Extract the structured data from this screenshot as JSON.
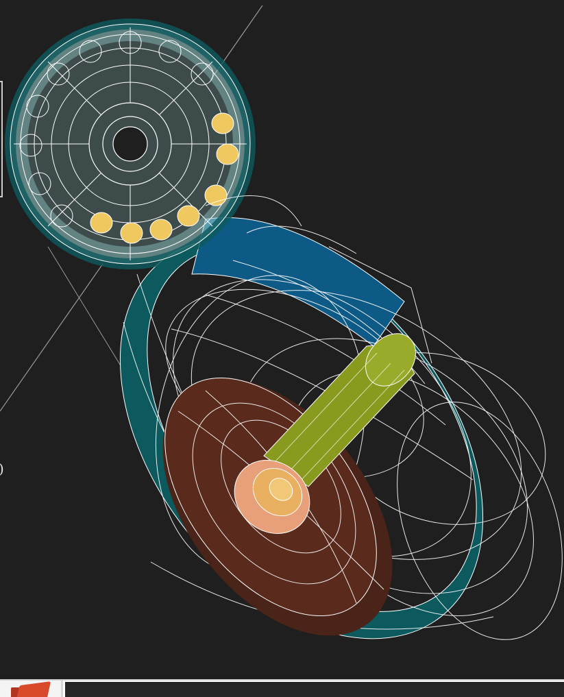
{
  "viewer": {
    "background_color": "#1f1f1f",
    "edge_glyph": ")",
    "wire_color": "#ffffff"
  },
  "model_parts": [
    {
      "name": "bearing-ring",
      "color": "#9ad4d4"
    },
    {
      "name": "bearing-balls",
      "color": "#f0c860"
    },
    {
      "name": "blue-arm",
      "color": "#0e5a86"
    },
    {
      "name": "teal-wheel-rim",
      "color": "#0c5a5e"
    },
    {
      "name": "brown-disc",
      "color": "#5a2a1c"
    },
    {
      "name": "olive-shaft",
      "color": "#8a9a1e"
    },
    {
      "name": "shaft-end-cap",
      "color": "#e8a07a"
    }
  ],
  "taskbar": {
    "app_icon": "cad-application-icon",
    "accent_color": "#d84a2a"
  }
}
